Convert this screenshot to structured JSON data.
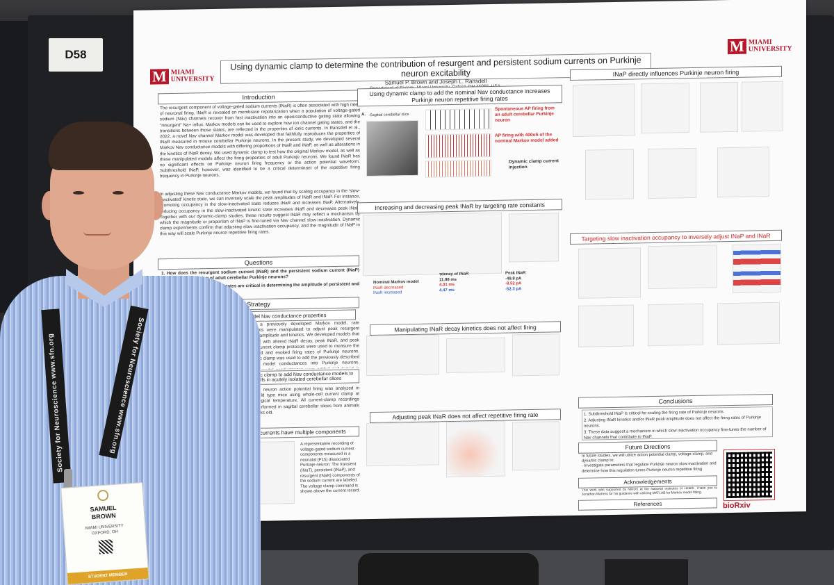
{
  "booth": {
    "number": "D58"
  },
  "poster": {
    "logo": {
      "line1": "MIAMI",
      "line2": "UNIVERSITY"
    },
    "title": "Using dynamic clamp to determine the contribution of resurgent and persistent sodium currents on Purkinje neuron excitability",
    "authors": "Samuel P. Brown and Joseph L. Ransdell",
    "affiliation": "Department of Biology, Miami University, Oxford, OH 45056, USA.",
    "sections": {
      "introduction": "Introduction",
      "intro_text": "The resurgent component of voltage-gated sodium currents (INaR) is often associated with high rates of neuronal firing. INaR is revealed on membrane repolarization when a population of voltage-gated sodium (Nav) channels recover from fast inactivation into an open/conductive gating state allowing \"resurgent\" Na+ influx. Markov models can be used to explore how ion channel gating states, and the transitions between those states, are reflected in the properties of ionic currents. In Ransdell et al., 2022, a novel Nav channel Markov model was developed that faithfully reproduces the properties of INaR measured in mouse cerebellar Purkinje neurons. In the present study, we developed several Markov Nav conductance models with differing proportions of INaR and INaP, as well as alterations in the kinetics of INaR decay. We used dynamic clamp to test how the original Markov model, as well as these manipulated models affect the firing properties of adult Purkinje neurons. We found INaR has no significant effects on Purkinje neuron firing frequency or the action potential waveform. Subthreshold INaP, however, was identified to be a critical determinant of the repetitive firing frequency in Purkinje neurons.",
      "intro_text2": "In adjusting these Nav conductance Markov models, we found that by scaling occupancy in the 'slow-inactivated' kinetic state, we can inversely scale the peak amplitudes of INaR and INaP. For instance, promoting occupancy in the slow-inactivated state reduces INaR and increases INaP. Alternatively, reducing occupancy in the slow-inactivated kinetic state increases INaR and decreases peak INaP. Together with our dynamic-clamp studies, these results suggest INaR may reflect a mechanism by which the magnitude or proportion of INaP is fine-tuned via Nav channel slow inactivation. Dynamic clamp experiments confirm that adjusting slow inactivation occupancy, and the magnitude of INaP in this way will scale Purkinje neuron repetitive firing rates.",
      "questions": "Questions",
      "q1": "1. How does the resurgent sodium current (INaR) and the persistent sodium current (INaP) contribute to the firing of adult cerebellar Purkinje neurons?",
      "q2": "2. Which Nav channel kinetic states are critical in determining the amplitude of persistent and resurgent sodium currents?",
      "strategy": "Strategy",
      "strategy_sub1": "Manipulate model Nav conductance properties",
      "strategy_sub2": "Dynamic clamp to add Nav conductance models to cells in acutely isolated cerebellar slices",
      "strategy_text": "Using a previously developed Markov model, rate constants were manipulated to adjust peak resurgent current amplitude and kinetics. We developed models that targeted with altered INaR decay, peak INaR, and peak INaP. Current clamp protocols were used to measure the threshold and evoked firing rates of Purkinje neurons. Dynamic clamp was used to add the previously described Markov model conductances into Purkinje neurons. Markov model conductances were added and tested in different experiments.",
      "slice_text": "Purkinje neuron action potential firing was analyzed in adult wild type mice using whole-cell current clamp at physiological temperature. All current-clamp recordings were performed in sagittal cerebellar slices from animals 6-8 weeks old.",
      "currents": "Na currents have multiple components",
      "currents_text": "A representative recording of voltage-gated sodium current components measured in a neonatal (P15) dissociated Purkinje neuron. The transient (INaT), persistent (INaP), and resurgent (INaR) components of the sodium current are labeled. The voltage clamp command is shown above the current record.",
      "mid_head1": "Using dynamic clamp to add the nominal Nav conductance increases Purkinje neuron repetitive firing rates",
      "fig_label_spont": "Spontaneous AP firing from an adult cerebellar Purkinje neuron",
      "fig_label_ap": "AP firing with 400nS of the nominal Markov model added",
      "fig_label_dc": "Dynamic clamp current injection",
      "sagittal": "Sagittal cerebellar slice",
      "mid_head2": "Increasing and decreasing peak INaR by targeting rate constants",
      "nominal_model": "Nominal Markov model",
      "inar_decreased": "INaR decreased",
      "inar_increased": "INaR increased",
      "tdecay_head": "τdecay of INaR",
      "tdecay_vals": [
        "11.98 ms",
        "4.31 ms",
        "4.47 ms"
      ],
      "peak_head": "Peak INaR",
      "peak_vals": [
        "-49.8 pA",
        "-8.52 pA",
        "-52.3 pA"
      ],
      "mid_head3": "Manipulating INaR decay kinetics does not affect firing",
      "mid_head4": "Adjusting peak INaR does not affect repetitive firing rate",
      "right_head1": "INaP directly influences Purkinje neuron firing",
      "right_head2": "Targeting slow inactivation occupancy to inversely adjust INaP and INaR",
      "conclusions": "Conclusions",
      "conc_items": [
        "1. Subthreshold INaP is critical for scaling the firing rate of Purkinje neurons.",
        "2. Adjusting INaR kinetics and/or INaR peak amplitude does not affect the firing rates of Purkinje neurons.",
        "3. These data suggest a mechanism in which slow inactivation occupancy fine-tunes the number of Nav channels that contribute to INaP."
      ],
      "future": "Future Directions",
      "future_text": "In future studies, we will utilize action potential clamp, voltage-clamp, and dynamic clamp to:",
      "future_item": "- Investigate parameters that regulate Purkinje neuron slow inactivation and determine how this regulation tunes Purkinje neuron repetitive firing",
      "ack": "Acknowledgements",
      "ack_text": "This work was supported by NINDS at the National Institutes of Health. Thank you to Jonathan Marrero for his guidance with utilizing MATLAB for Markov model fitting.",
      "refs": "References",
      "biorxiv": "bioRxiv"
    }
  },
  "badge": {
    "first": "SAMUEL",
    "last": "BROWN",
    "org1": "MIAMI UNIVERSITY",
    "org2": "OXFORD, OH",
    "ribbon": "STUDENT MEMBER"
  },
  "lanyard": {
    "left": "Society for Neuroscience  www.sfn.org",
    "right": "Society for Neuroscience  www.sfn.org"
  }
}
